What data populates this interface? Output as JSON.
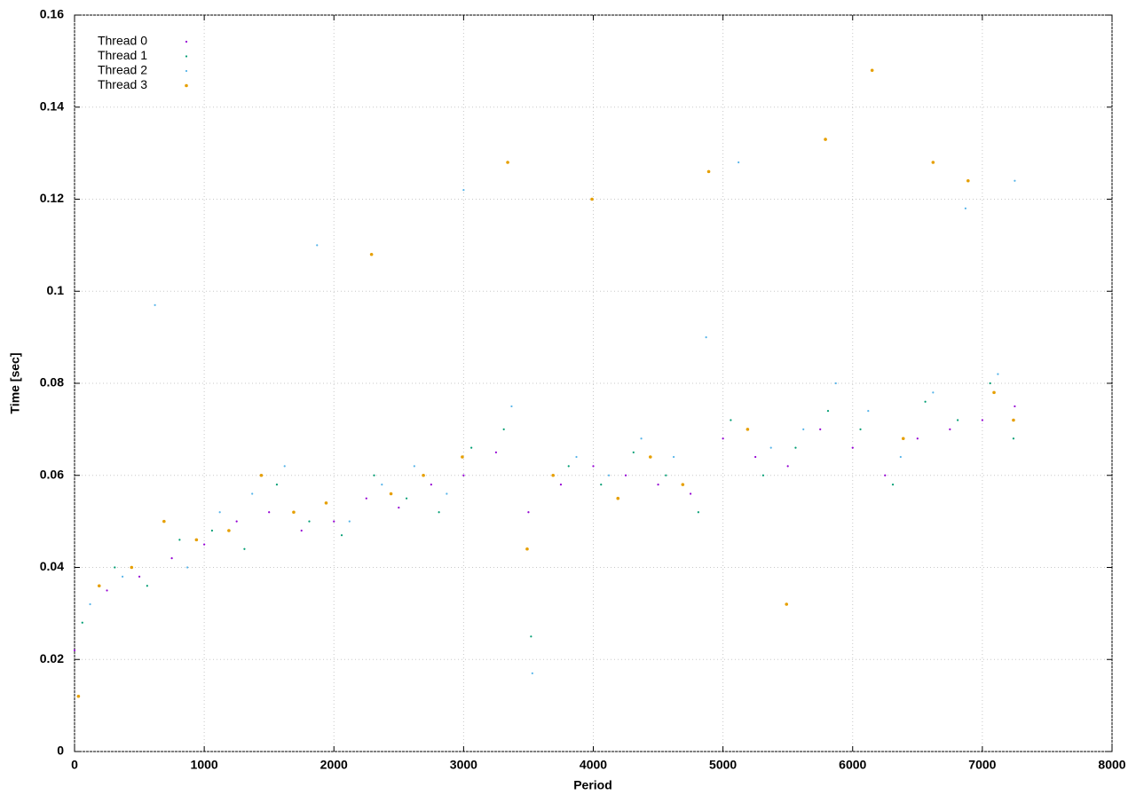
{
  "chart_data": {
    "type": "scatter",
    "xlabel": "Period",
    "ylabel": "Time [sec]",
    "xlim": [
      0,
      8000
    ],
    "xticks": [
      0,
      1000,
      2000,
      3000,
      4000,
      5000,
      6000,
      7000,
      8000
    ],
    "ylim": [
      0,
      0.16
    ],
    "yticks": [
      0,
      0.02,
      0.04,
      0.06,
      0.08,
      0.1,
      0.12,
      0.14,
      0.16
    ],
    "grid": true,
    "legend": "top-left",
    "series": [
      {
        "name": "Thread 0",
        "color": "#9400d3",
        "x": [
          0,
          250,
          500,
          750,
          1000,
          1250,
          1500,
          1750,
          2000,
          2250,
          2500,
          2750,
          3000,
          3250,
          3500,
          3750,
          4000,
          4250,
          4500,
          4750,
          5000,
          5250,
          5500,
          5750,
          6000,
          6250,
          6500,
          6750,
          7000,
          7250
        ],
        "values": [
          0.022,
          0.035,
          0.038,
          0.042,
          0.045,
          0.05,
          0.052,
          0.048,
          0.05,
          0.055,
          0.053,
          0.058,
          0.06,
          0.065,
          0.052,
          0.058,
          0.062,
          0.06,
          0.058,
          0.056,
          0.068,
          0.064,
          0.062,
          0.07,
          0.066,
          0.06,
          0.068,
          0.07,
          0.072,
          0.075
        ]
      },
      {
        "name": "Thread 1",
        "color": "#009e73",
        "x": [
          60,
          310,
          560,
          810,
          1060,
          1310,
          1560,
          1810,
          2060,
          2310,
          2560,
          2810,
          3060,
          3310,
          3520,
          3810,
          4060,
          4310,
          4560,
          4810,
          5060,
          5310,
          5560,
          5810,
          6060,
          6310,
          6560,
          6810,
          7060,
          7240
        ],
        "values": [
          0.028,
          0.04,
          0.036,
          0.046,
          0.048,
          0.044,
          0.058,
          0.05,
          0.047,
          0.06,
          0.055,
          0.052,
          0.066,
          0.07,
          0.025,
          0.062,
          0.058,
          0.065,
          0.06,
          0.052,
          0.072,
          0.06,
          0.066,
          0.074,
          0.07,
          0.058,
          0.076,
          0.072,
          0.08,
          0.068
        ]
      },
      {
        "name": "Thread 2",
        "color": "#56b4e9",
        "x": [
          120,
          370,
          620,
          870,
          1120,
          1370,
          1620,
          1870,
          2120,
          2370,
          2620,
          2870,
          3000,
          3370,
          3530,
          3870,
          4120,
          4370,
          4620,
          4870,
          5120,
          5370,
          5620,
          5870,
          6120,
          6370,
          6620,
          6870,
          7120,
          7250
        ],
        "values": [
          0.032,
          0.038,
          0.097,
          0.04,
          0.052,
          0.056,
          0.062,
          0.11,
          0.05,
          0.058,
          0.062,
          0.056,
          0.122,
          0.075,
          0.017,
          0.064,
          0.06,
          0.068,
          0.064,
          0.09,
          0.128,
          0.066,
          0.07,
          0.08,
          0.074,
          0.064,
          0.078,
          0.118,
          0.082,
          0.124
        ]
      },
      {
        "name": "Thread 3",
        "color": "#e69f00",
        "x": [
          30,
          190,
          440,
          690,
          940,
          1190,
          1440,
          1690,
          1940,
          2290,
          2440,
          2690,
          2990,
          3340,
          3490,
          3690,
          3990,
          4190,
          4440,
          4690,
          4890,
          5190,
          5490,
          5790,
          6150,
          6390,
          6620,
          6890,
          7090,
          7240
        ],
        "values": [
          0.012,
          0.036,
          0.04,
          0.05,
          0.046,
          0.048,
          0.06,
          0.052,
          0.054,
          0.108,
          0.056,
          0.06,
          0.064,
          0.128,
          0.044,
          0.06,
          0.12,
          0.055,
          0.064,
          0.058,
          0.126,
          0.07,
          0.032,
          0.133,
          0.148,
          0.068,
          0.128,
          0.124,
          0.078,
          0.072
        ]
      }
    ]
  }
}
